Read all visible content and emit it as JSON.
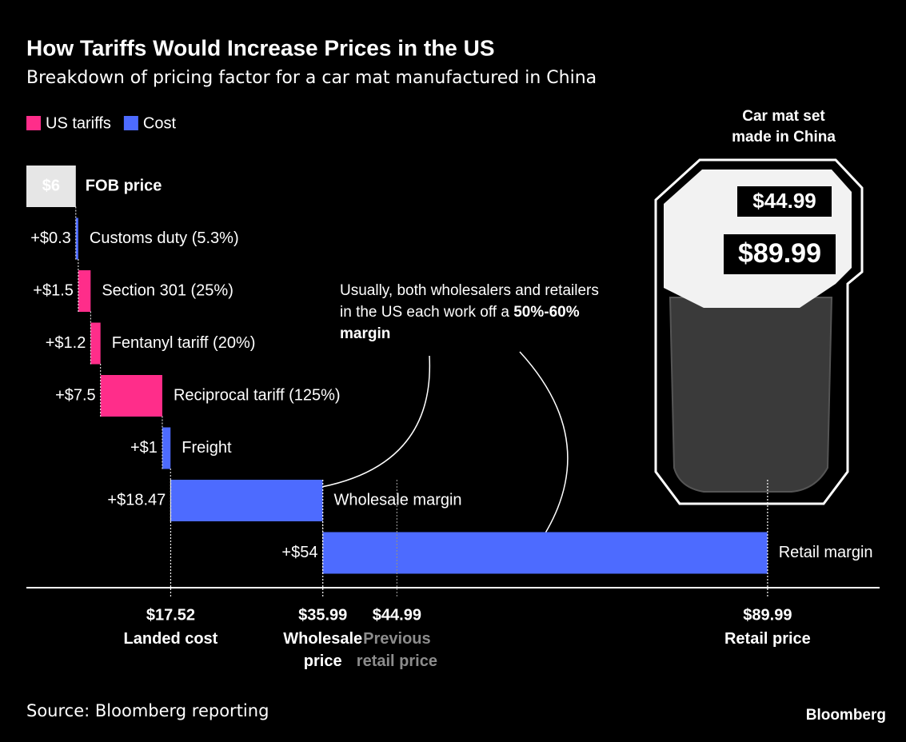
{
  "chart_data": {
    "type": "waterfall",
    "title": "How Tariffs Would Increase Prices in the US",
    "subtitle": "Breakdown of pricing factor for a car mat manufactured in China",
    "legend": [
      {
        "name": "US tariffs",
        "color": "#ff2d8a"
      },
      {
        "name": "Cost",
        "color": "#4d6bff"
      }
    ],
    "categories": [
      "FOB price",
      "Customs duty (5.3%)",
      "Section 301 (25%)",
      "Fentanyl tariff (20%)",
      "Reciprocal tariff (125%)",
      "Freight",
      "Wholesale margin",
      "Retail margin"
    ],
    "values": [
      6,
      0.3,
      1.5,
      1.2,
      7.5,
      1,
      18.47,
      54
    ],
    "value_labels": [
      "$6",
      "+$0.3",
      "+$1.5",
      "+$1.2",
      "+$7.5",
      "+$1",
      "+$18.47",
      "+$54"
    ],
    "colors": [
      "#e6e6e6",
      "#4d6bff",
      "#ff2d8a",
      "#ff2d8a",
      "#ff2d8a",
      "#4d6bff",
      "#4d6bff",
      "#4d6bff"
    ],
    "xlim": [
      0,
      90
    ],
    "markers": [
      {
        "value": 17.52,
        "label": "$17.52",
        "text": "Landed cost",
        "color": "#ffffff"
      },
      {
        "value": 35.99,
        "label": "$35.99",
        "text": "Wholesale price",
        "color": "#ffffff"
      },
      {
        "value": 44.99,
        "label": "$44.99",
        "text": "Previous retail price",
        "color": "#8c8c8c"
      },
      {
        "value": 89.99,
        "label": "$89.99",
        "text": "Retail price",
        "color": "#ffffff"
      }
    ],
    "annotation": [
      "Usually, both wholesalers and retailers in the US each work off a ",
      "50%-60% margin"
    ]
  },
  "illustration": {
    "caption": "Car mat set made in China",
    "tags": [
      "$44.99",
      "$89.99"
    ]
  },
  "source": "Source: Bloomberg reporting",
  "brand": "Bloomberg"
}
